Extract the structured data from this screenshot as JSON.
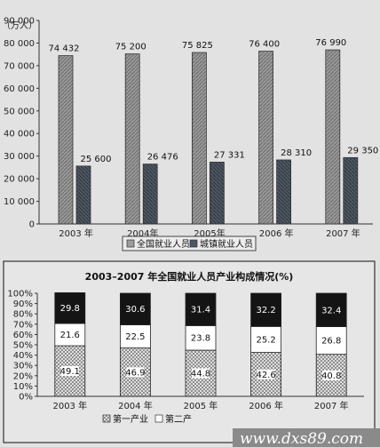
{
  "chart_data": [
    {
      "type": "bar",
      "unit_label": "（万人）",
      "categories": [
        "2003 年",
        "2004年",
        "2005年",
        "2006 年",
        "2007 年"
      ],
      "ylim": [
        0,
        90000
      ],
      "yticks": [
        "0",
        "10 000",
        "20 000",
        "30 000",
        "40 000",
        "50 000",
        "60 000",
        "70 000",
        "80 000",
        "90 000"
      ],
      "series": [
        {
          "name": "全国就业人员",
          "values": [
            74432,
            75200,
            75825,
            76400,
            76990
          ],
          "labels": [
            "74 432",
            "75 200",
            "75 825",
            "76 400",
            "76 990"
          ],
          "color": "#9c9c9c"
        },
        {
          "name": "城镇就业人员",
          "values": [
            25600,
            26476,
            27331,
            28310,
            29350
          ],
          "labels": [
            "25 600",
            "26 476",
            "27 331",
            "28 310",
            "29 350"
          ],
          "color": "#4f5862"
        }
      ],
      "legend": "bottom",
      "grid": false
    },
    {
      "type": "bar",
      "stacked": true,
      "title": "2003–2007 年全国就业人员产业构成情况(%)",
      "categories": [
        "2003 年",
        "2004 年",
        "2005 年",
        "2006 年",
        "2007 年"
      ],
      "ylim": [
        0,
        100
      ],
      "yticks": [
        "0%",
        "10%",
        "20%",
        "30%",
        "40%",
        "50%",
        "60%",
        "70%",
        "80%",
        "90%",
        "100%"
      ],
      "series": [
        {
          "name": "第一产业",
          "values": [
            49.1,
            46.9,
            44.8,
            42.6,
            40.8
          ],
          "labels": [
            "49.1",
            "46.9",
            "44.8",
            "42.6",
            "40.8"
          ],
          "pattern": "crosshatch"
        },
        {
          "name": "第二产",
          "values": [
            21.6,
            22.5,
            23.8,
            25.2,
            26.8
          ],
          "labels": [
            "21.6",
            "22.5",
            "23.8",
            "25.2",
            "26.8"
          ],
          "pattern": "white"
        },
        {
          "name": "",
          "values": [
            29.8,
            30.6,
            31.4,
            32.2,
            32.4
          ],
          "labels": [
            "29.8",
            "30.6",
            "31.4",
            "32.2",
            "32.4"
          ],
          "pattern": "black"
        }
      ],
      "legend": "bottom",
      "grid": false
    }
  ],
  "watermark": "www.dxs89.com"
}
